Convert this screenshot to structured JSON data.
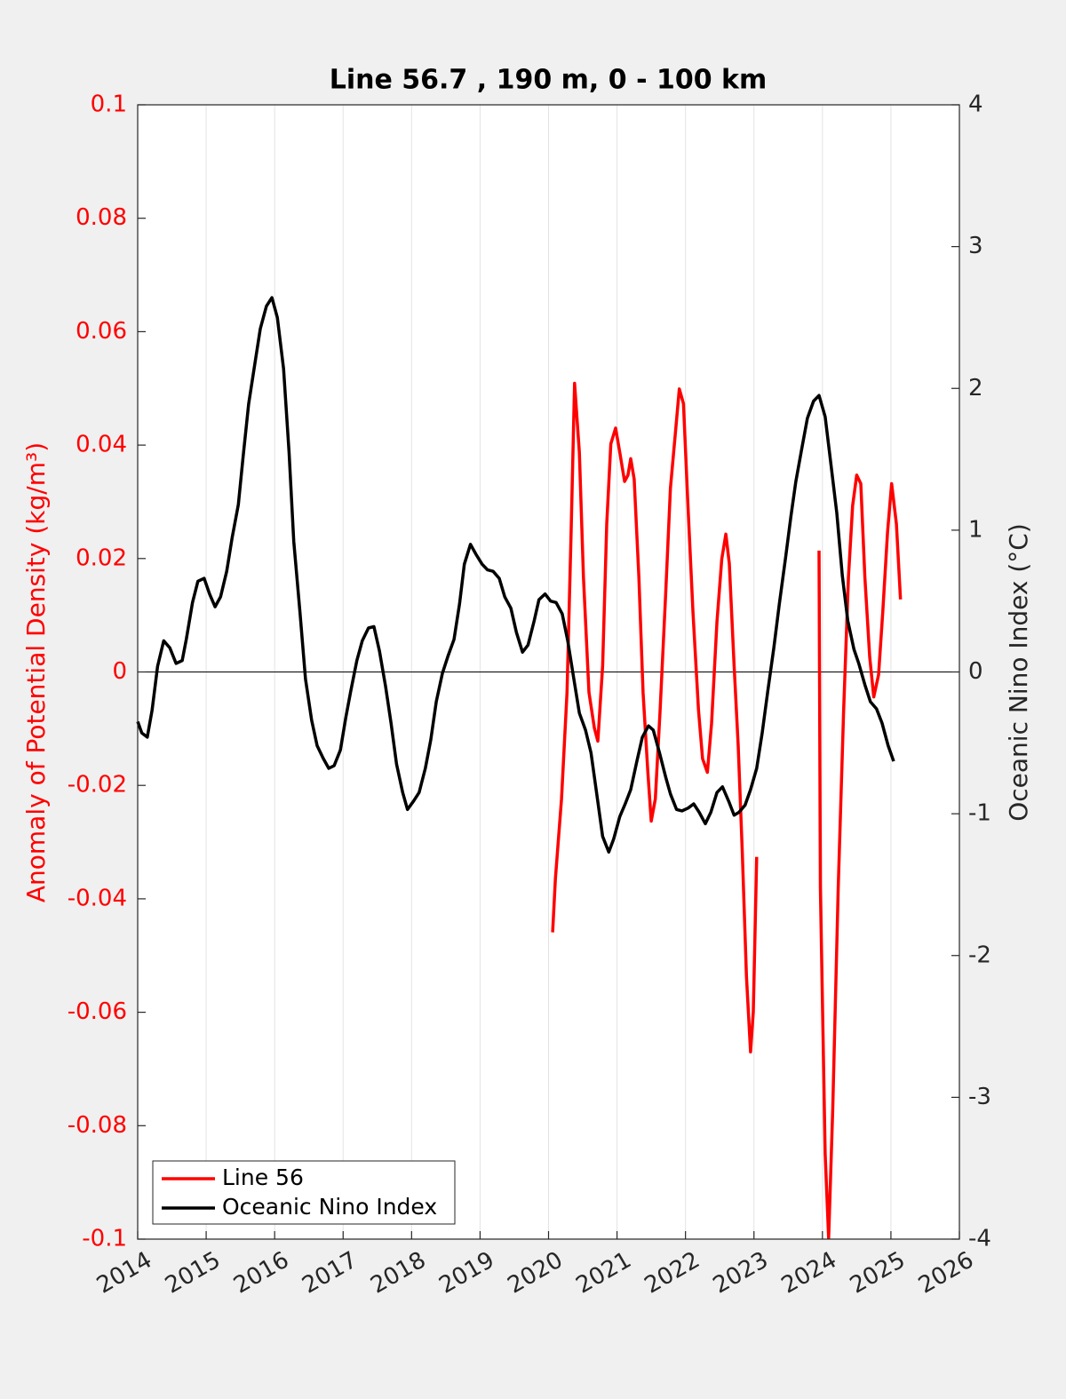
{
  "chart_data": {
    "type": "line",
    "title": "Line 56.7 , 190 m, 0 - 100 km",
    "ylabel": "Anomaly of Potential Density (kg/m³)",
    "y2label": "Oceanic Nino Index (°C)",
    "xlim": [
      2014,
      2026
    ],
    "xticks": [
      2014,
      2015,
      2016,
      2017,
      2018,
      2019,
      2020,
      2021,
      2022,
      2023,
      2024,
      2025,
      2026
    ],
    "ylim": [
      -0.1,
      0.1
    ],
    "yticks": [
      -0.1,
      -0.08,
      -0.06,
      -0.04,
      -0.02,
      0,
      0.02,
      0.04,
      0.06,
      0.08,
      0.1
    ],
    "y2lim": [
      -4,
      4
    ],
    "y2ticks": [
      -4,
      -3,
      -2,
      -1,
      0,
      1,
      2,
      3,
      4
    ],
    "ycolor": "#ff0000",
    "hline": 0,
    "grid": "x",
    "legend": "lower left",
    "series": [
      {
        "name": "Line 56",
        "color": "#ff0000",
        "axis": "y",
        "x": [
          2020.06,
          2020.1,
          2020.19,
          2020.27,
          2020.33,
          2020.38,
          2020.45,
          2020.51,
          2020.59,
          2020.67,
          2020.72,
          2020.79,
          2020.85,
          2020.91,
          2020.98,
          2021.04,
          2021.11,
          2021.16,
          2021.2,
          2021.25,
          2021.32,
          2021.38,
          2021.45,
          2021.5,
          2021.56,
          2021.63,
          2021.71,
          2021.78,
          2021.85,
          2021.91,
          2021.97,
          2022.03,
          2022.11,
          2022.19,
          2022.25,
          2022.32,
          2022.38,
          2022.46,
          2022.53,
          2022.59,
          2022.64,
          2022.71,
          2022.77,
          2022.83,
          2022.89,
          2022.95,
          2022.99,
          2023.04,
          null,
          2023.95,
          2023.97,
          2024.04,
          2024.09,
          2024.15,
          2024.23,
          2024.31,
          2024.38,
          2024.44,
          2024.5,
          2024.56,
          2024.62,
          2024.69,
          2024.75,
          2024.82,
          2024.88,
          2024.95,
          2025.01,
          2025.08,
          2025.14
        ],
        "values": [
          -0.0459,
          -0.0365,
          -0.0224,
          -0.0036,
          0.0246,
          0.0509,
          0.0387,
          0.0167,
          -0.0036,
          -0.0099,
          -0.0122,
          0.0011,
          0.0261,
          0.0402,
          0.043,
          0.0387,
          0.0336,
          0.0347,
          0.0376,
          0.034,
          0.0167,
          -0.0036,
          -0.0177,
          -0.0263,
          -0.0224,
          -0.0067,
          0.0136,
          0.0324,
          0.0418,
          0.0499,
          0.0473,
          0.0308,
          0.0105,
          -0.0067,
          -0.0153,
          -0.0177,
          -0.0091,
          0.0089,
          0.0199,
          0.0243,
          0.0191,
          0.0011,
          -0.013,
          -0.0318,
          -0.0537,
          -0.067,
          -0.0599,
          -0.0326,
          null,
          0.0214,
          -0.038,
          -0.085,
          -0.0998,
          -0.0772,
          -0.038,
          -0.0067,
          0.0167,
          0.0293,
          0.0347,
          0.0332,
          0.0167,
          0.0027,
          -0.0044,
          -0.0005,
          0.0105,
          0.0246,
          0.0332,
          0.0261,
          0.0128
        ]
      },
      {
        "name": "Oceanic Nino Index",
        "color": "#000000",
        "axis": "y2",
        "x": [
          2014.0,
          2014.06,
          2014.14,
          2014.21,
          2014.29,
          2014.38,
          2014.47,
          2014.56,
          2014.65,
          2014.71,
          2014.8,
          2014.88,
          2014.97,
          2015.05,
          2015.13,
          2015.21,
          2015.3,
          2015.38,
          2015.47,
          2015.54,
          2015.62,
          2015.71,
          2015.79,
          2015.88,
          2015.96,
          2016.04,
          2016.13,
          2016.21,
          2016.28,
          2016.37,
          2016.45,
          2016.54,
          2016.62,
          2016.71,
          2016.79,
          2016.87,
          2016.96,
          2017.04,
          2017.11,
          2017.2,
          2017.28,
          2017.37,
          2017.45,
          2017.53,
          2017.62,
          2017.7,
          2017.78,
          2017.87,
          2017.94,
          2018.03,
          2018.11,
          2018.2,
          2018.28,
          2018.36,
          2018.45,
          2018.53,
          2018.62,
          2018.7,
          2018.77,
          2018.86,
          2018.94,
          2019.03,
          2019.11,
          2019.19,
          2019.28,
          2019.36,
          2019.45,
          2019.53,
          2019.62,
          2019.7,
          2019.79,
          2019.86,
          2019.95,
          2020.03,
          2020.11,
          2020.2,
          2020.28,
          2020.37,
          2020.45,
          2020.54,
          2020.62,
          2020.71,
          2020.79,
          2020.88,
          2020.95,
          2021.04,
          2021.12,
          2021.2,
          2021.29,
          2021.37,
          2021.46,
          2021.53,
          2021.62,
          2021.71,
          2021.78,
          2021.87,
          2021.95,
          2022.04,
          2022.12,
          2022.2,
          2022.29,
          2022.37,
          2022.46,
          2022.54,
          2022.63,
          2022.71,
          2022.78,
          2022.87,
          2022.95,
          2023.04,
          2023.12,
          2023.2,
          2023.29,
          2023.37,
          2023.46,
          2023.54,
          2023.61,
          2023.7,
          2023.78,
          2023.87,
          2023.95,
          2024.04,
          2024.12,
          2024.21,
          2024.29,
          2024.37,
          2024.46,
          2024.53,
          2024.62,
          2024.7,
          2024.79,
          2024.87,
          2024.96,
          2025.04
        ],
        "values": [
          -0.35,
          -0.43,
          -0.46,
          -0.27,
          0.04,
          0.22,
          0.17,
          0.06,
          0.08,
          0.23,
          0.49,
          0.64,
          0.66,
          0.55,
          0.46,
          0.53,
          0.71,
          0.95,
          1.18,
          1.52,
          1.89,
          2.17,
          2.42,
          2.58,
          2.64,
          2.5,
          2.14,
          1.55,
          0.92,
          0.42,
          -0.05,
          -0.34,
          -0.52,
          -0.61,
          -0.68,
          -0.66,
          -0.55,
          -0.32,
          -0.14,
          0.08,
          0.22,
          0.31,
          0.32,
          0.15,
          -0.1,
          -0.36,
          -0.65,
          -0.85,
          -0.97,
          -0.91,
          -0.85,
          -0.68,
          -0.48,
          -0.21,
          -0.01,
          0.11,
          0.23,
          0.48,
          0.76,
          0.9,
          0.83,
          0.76,
          0.72,
          0.71,
          0.66,
          0.53,
          0.45,
          0.28,
          0.14,
          0.19,
          0.36,
          0.51,
          0.55,
          0.5,
          0.49,
          0.41,
          0.22,
          -0.05,
          -0.29,
          -0.41,
          -0.57,
          -0.88,
          -1.16,
          -1.27,
          -1.18,
          -1.02,
          -0.93,
          -0.83,
          -0.63,
          -0.46,
          -0.38,
          -0.41,
          -0.57,
          -0.74,
          -0.86,
          -0.97,
          -0.98,
          -0.96,
          -0.93,
          -0.99,
          -1.07,
          -0.99,
          -0.85,
          -0.81,
          -0.91,
          -1.01,
          -0.99,
          -0.94,
          -0.83,
          -0.68,
          -0.43,
          -0.14,
          0.17,
          0.48,
          0.8,
          1.1,
          1.34,
          1.58,
          1.79,
          1.91,
          1.95,
          1.8,
          1.48,
          1.12,
          0.68,
          0.36,
          0.16,
          0.06,
          -0.09,
          -0.21,
          -0.26,
          -0.36,
          -0.52,
          -0.63
        ]
      }
    ]
  }
}
